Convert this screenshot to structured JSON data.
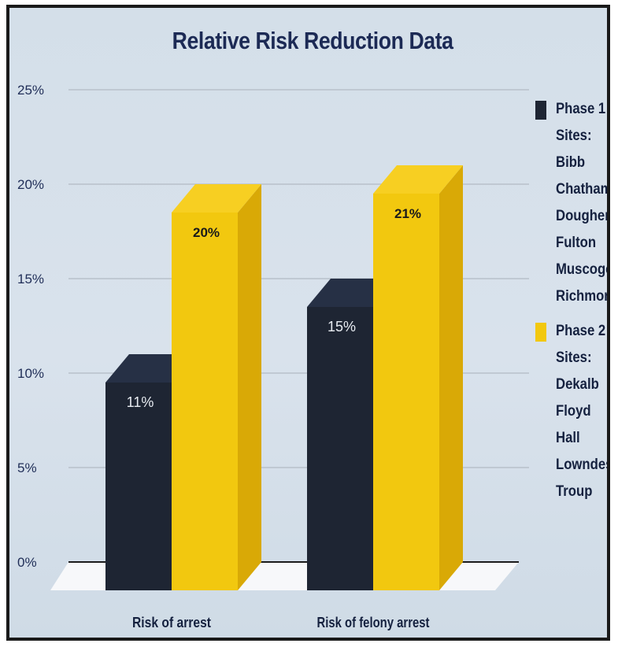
{
  "chart_data": {
    "type": "bar",
    "title": "Relative Risk Reduction Data",
    "categories": [
      "Risk of arrest",
      "Risk of felony arrest"
    ],
    "series": [
      {
        "name": "Phase 1",
        "values": [
          11,
          15
        ],
        "labels": [
          "11%",
          "15%"
        ],
        "color": "#1e2533"
      },
      {
        "name": "Phase 2",
        "values": [
          20,
          21
        ],
        "labels": [
          "20%",
          "21%"
        ],
        "color": "#f2c80f"
      }
    ],
    "y_ticks": [
      "0%",
      "5%",
      "10%",
      "15%",
      "20%",
      "25%"
    ],
    "ylim": [
      0,
      25
    ],
    "grid": true,
    "legend_position": "right",
    "legend": {
      "phase1": {
        "title": "Phase 1",
        "subtitle": "Sites:",
        "sites": [
          "Bibb",
          "Chatham",
          "Dougherty",
          "Fulton",
          "Muscogee",
          "Richmond"
        ]
      },
      "phase2": {
        "title": "Phase 2",
        "subtitle": "Sites:",
        "sites": [
          "Dekalb",
          "Floyd",
          "Hall",
          "Lowndes",
          "Troup"
        ]
      }
    }
  }
}
